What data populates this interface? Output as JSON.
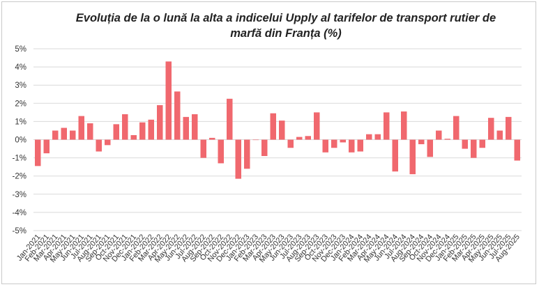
{
  "chart_data": {
    "type": "bar",
    "title": "Evoluția de la o lună la alta a indicelui Upply al tarifelor de transport rutier de marfă din Franța (%)",
    "xlabel": "",
    "ylabel": "",
    "ylim": [
      -5,
      5
    ],
    "y_ticks": [
      "5%",
      "4%",
      "3%",
      "2%",
      "1%",
      "0%",
      "-1%",
      "-2%",
      "-3%",
      "-4%",
      "-5%"
    ],
    "grid": true,
    "legend": "none",
    "bar_color": "#F0686E",
    "categories": [
      "Jan-2021",
      "Feb-2021",
      "Mar-2021",
      "Apr-2021",
      "May-2021",
      "Jun-2021",
      "Jul-2021",
      "Aug-2021",
      "Sep-2021",
      "Oct-2021",
      "Nov-2021",
      "Dec-2021",
      "Jan-2022",
      "Feb-2022",
      "Mar-2022",
      "Apr-2022",
      "May-2022",
      "Jun-2022",
      "Jul-2022",
      "Aug-2022",
      "Sep-2022",
      "Oct-2022",
      "Nov-2022",
      "Dec-2022",
      "Jan-2023",
      "Feb-2023",
      "Mar-2023",
      "Apr-2023",
      "May-2023",
      "Jun-2023",
      "Jul-2023",
      "Aug-2023",
      "Sep-2023",
      "Oct-2023",
      "Nov-2023",
      "Dec-2023",
      "Jan-2024",
      "Feb-2024",
      "Mar-2024",
      "Apr-2024",
      "May-2024",
      "Jun-2024",
      "Jul-2024",
      "Aug-2024",
      "Sep-2024",
      "Oct-2024",
      "Nov-2024",
      "Dec-2024",
      "Jan-2025",
      "Feb-2025",
      "Mar-2025",
      "Apr-2025",
      "May-2025",
      "Jun-2025",
      "Jul-2025",
      "Aug-2025"
    ],
    "values": [
      -1.45,
      -0.75,
      0.5,
      0.65,
      0.5,
      1.3,
      0.9,
      -0.65,
      -0.3,
      0.85,
      1.4,
      0.25,
      0.95,
      1.1,
      1.9,
      4.3,
      2.65,
      1.25,
      1.4,
      -1.0,
      0.1,
      -1.3,
      2.25,
      -2.15,
      -1.6,
      0.0,
      -0.9,
      1.45,
      1.05,
      -0.45,
      0.15,
      0.2,
      1.5,
      -0.7,
      -0.45,
      -0.15,
      -0.7,
      -0.65,
      0.3,
      0.3,
      1.5,
      -1.75,
      1.55,
      -1.9,
      -0.25,
      -0.95,
      0.5,
      0.05,
      1.3,
      -0.5,
      -1.0,
      -0.45,
      1.2,
      0.5,
      1.25,
      -1.15
    ]
  }
}
